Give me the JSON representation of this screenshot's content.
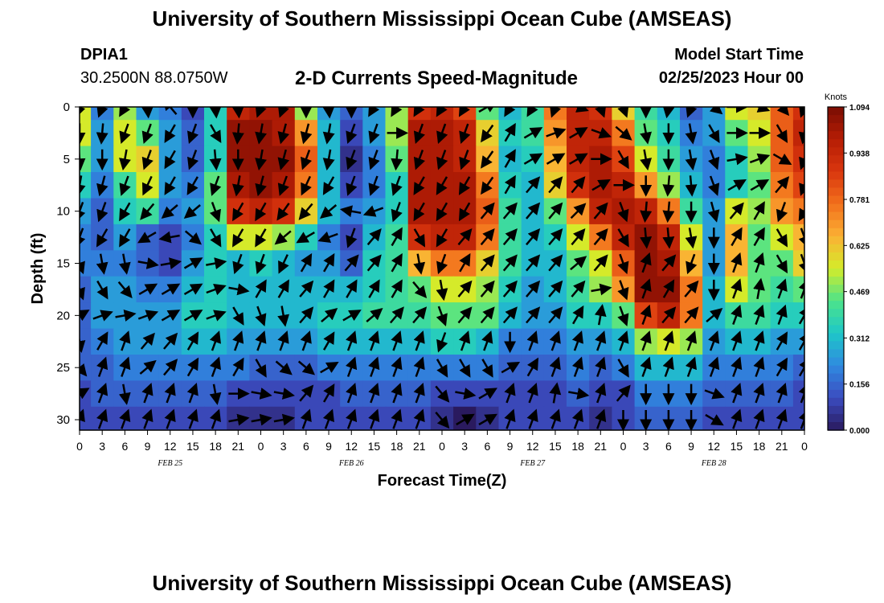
{
  "header": {
    "title": "University of Southern Mississippi Ocean Cube (AMSEAS)",
    "station_id": "DPIA1",
    "coordinates": "30.2500N  88.0750W",
    "subtitle": "2-D Currents Speed-Magnitude",
    "model_label": "Model Start Time",
    "model_start": "02/25/2023 Hour 00"
  },
  "footer": {
    "title": "University of Southern Mississippi Ocean Cube (AMSEAS)"
  },
  "chart_data": {
    "type": "heatmap",
    "title": "2-D Currents Speed-Magnitude",
    "xlabel": "Forecast Time(Z)",
    "ylabel": "Depth (ft)",
    "x_tick_labels": [
      "0",
      "3",
      "6",
      "9",
      "12",
      "15",
      "18",
      "21",
      "0",
      "3",
      "6",
      "9",
      "12",
      "15",
      "18",
      "21",
      "0",
      "3",
      "6",
      "9",
      "12",
      "15",
      "18",
      "21",
      "0",
      "3",
      "6",
      "9",
      "12",
      "15",
      "18",
      "21",
      "0"
    ],
    "x_range_hours": [
      0,
      96
    ],
    "date_labels": [
      {
        "label": "FEB 25",
        "hour": 12
      },
      {
        "label": "FEB 26",
        "hour": 36
      },
      {
        "label": "FEB 27",
        "hour": 60
      },
      {
        "label": "FEB 28",
        "hour": 84
      }
    ],
    "y_ticks": [
      0,
      5,
      10,
      15,
      20,
      25,
      30
    ],
    "ylim": [
      0,
      31
    ],
    "colorbar": {
      "label": "Knots",
      "min": 0.0,
      "max": 1.094,
      "tick_labels": [
        "1.094",
        "0.938",
        "0.781",
        "0.625",
        "0.469",
        "0.312",
        "0.156",
        "0.000"
      ],
      "tick_values": [
        1.094,
        0.938,
        0.781,
        0.625,
        0.469,
        0.312,
        0.156,
        0.0
      ]
    },
    "depths": [
      0,
      2.5,
      5,
      7.5,
      10,
      12.5,
      15,
      17.5,
      20,
      22.5,
      25,
      27.5,
      30
    ],
    "hours": [
      0,
      3,
      6,
      9,
      12,
      15,
      18,
      21,
      24,
      27,
      30,
      33,
      36,
      39,
      42,
      45,
      48,
      51,
      54,
      57,
      60,
      63,
      66,
      69,
      72,
      75,
      78,
      81,
      84,
      87,
      90,
      93,
      96
    ],
    "speed_knots": [
      [
        0.55,
        0.2,
        0.5,
        0.25,
        0.2,
        0.1,
        0.35,
        0.95,
        1.0,
        1.0,
        0.5,
        0.25,
        0.15,
        0.25,
        0.5,
        0.9,
        0.95,
        0.85,
        0.45,
        0.3,
        0.4,
        0.75,
        0.95,
        0.9,
        0.6,
        0.4,
        0.3,
        0.15,
        0.25,
        0.55,
        0.6,
        0.8,
        0.9
      ],
      [
        0.55,
        0.25,
        0.55,
        0.45,
        0.25,
        0.15,
        0.35,
        1.05,
        1.05,
        1.0,
        0.7,
        0.3,
        0.1,
        0.25,
        0.5,
        1.0,
        1.0,
        0.95,
        0.6,
        0.35,
        0.4,
        0.7,
        0.95,
        0.95,
        0.75,
        0.45,
        0.35,
        0.2,
        0.25,
        0.45,
        0.55,
        0.8,
        0.95
      ],
      [
        0.45,
        0.25,
        0.55,
        0.6,
        0.25,
        0.15,
        0.35,
        1.05,
        1.05,
        1.05,
        0.8,
        0.3,
        0.05,
        0.2,
        0.45,
        1.0,
        1.0,
        0.95,
        0.65,
        0.3,
        0.35,
        0.65,
        0.95,
        1.0,
        0.85,
        0.55,
        0.4,
        0.25,
        0.2,
        0.35,
        0.5,
        0.8,
        0.9
      ],
      [
        0.35,
        0.2,
        0.4,
        0.55,
        0.25,
        0.2,
        0.45,
        1.0,
        1.05,
        1.0,
        0.75,
        0.3,
        0.1,
        0.2,
        0.35,
        1.0,
        1.0,
        1.0,
        0.75,
        0.35,
        0.3,
        0.6,
        0.9,
        1.0,
        0.95,
        0.7,
        0.5,
        0.3,
        0.2,
        0.35,
        0.45,
        0.75,
        0.85
      ],
      [
        0.25,
        0.15,
        0.35,
        0.4,
        0.2,
        0.25,
        0.45,
        0.9,
        0.95,
        0.9,
        0.6,
        0.3,
        0.2,
        0.25,
        0.35,
        1.0,
        1.0,
        1.0,
        0.8,
        0.4,
        0.3,
        0.45,
        0.7,
        0.95,
        1.0,
        0.95,
        0.75,
        0.4,
        0.25,
        0.55,
        0.5,
        0.7,
        0.75
      ],
      [
        0.2,
        0.15,
        0.25,
        0.15,
        0.1,
        0.2,
        0.35,
        0.55,
        0.55,
        0.5,
        0.35,
        0.2,
        0.1,
        0.3,
        0.4,
        0.9,
        0.95,
        0.95,
        0.75,
        0.4,
        0.3,
        0.35,
        0.55,
        0.75,
        0.95,
        1.05,
        0.95,
        0.55,
        0.25,
        0.65,
        0.45,
        0.55,
        0.65
      ],
      [
        0.2,
        0.2,
        0.2,
        0.15,
        0.1,
        0.25,
        0.35,
        0.3,
        0.35,
        0.3,
        0.25,
        0.25,
        0.15,
        0.35,
        0.4,
        0.65,
        0.75,
        0.75,
        0.6,
        0.4,
        0.3,
        0.3,
        0.45,
        0.55,
        0.8,
        1.05,
        1.0,
        0.65,
        0.25,
        0.65,
        0.45,
        0.45,
        0.6
      ],
      [
        0.15,
        0.25,
        0.25,
        0.2,
        0.2,
        0.3,
        0.35,
        0.3,
        0.3,
        0.3,
        0.3,
        0.3,
        0.3,
        0.35,
        0.4,
        0.45,
        0.55,
        0.55,
        0.5,
        0.35,
        0.25,
        0.3,
        0.4,
        0.5,
        0.7,
        1.05,
        1.05,
        0.75,
        0.3,
        0.55,
        0.45,
        0.4,
        0.45
      ],
      [
        0.15,
        0.25,
        0.25,
        0.25,
        0.25,
        0.35,
        0.35,
        0.3,
        0.3,
        0.3,
        0.3,
        0.35,
        0.35,
        0.4,
        0.4,
        0.4,
        0.45,
        0.45,
        0.45,
        0.3,
        0.25,
        0.25,
        0.35,
        0.35,
        0.45,
        0.85,
        0.95,
        0.75,
        0.3,
        0.4,
        0.4,
        0.35,
        0.35
      ],
      [
        0.15,
        0.2,
        0.25,
        0.25,
        0.25,
        0.3,
        0.3,
        0.25,
        0.25,
        0.25,
        0.25,
        0.3,
        0.3,
        0.3,
        0.3,
        0.3,
        0.35,
        0.35,
        0.3,
        0.2,
        0.2,
        0.2,
        0.25,
        0.25,
        0.3,
        0.5,
        0.55,
        0.5,
        0.25,
        0.3,
        0.3,
        0.25,
        0.25
      ],
      [
        0.15,
        0.15,
        0.2,
        0.2,
        0.2,
        0.2,
        0.2,
        0.2,
        0.15,
        0.15,
        0.15,
        0.2,
        0.2,
        0.2,
        0.2,
        0.2,
        0.2,
        0.2,
        0.2,
        0.15,
        0.15,
        0.15,
        0.2,
        0.15,
        0.2,
        0.3,
        0.3,
        0.3,
        0.2,
        0.2,
        0.2,
        0.2,
        0.15
      ],
      [
        0.1,
        0.15,
        0.15,
        0.15,
        0.15,
        0.15,
        0.15,
        0.1,
        0.1,
        0.1,
        0.1,
        0.1,
        0.15,
        0.15,
        0.15,
        0.15,
        0.1,
        0.1,
        0.1,
        0.1,
        0.1,
        0.1,
        0.15,
        0.1,
        0.1,
        0.2,
        0.2,
        0.2,
        0.15,
        0.15,
        0.15,
        0.15,
        0.1
      ],
      [
        0.1,
        0.1,
        0.1,
        0.1,
        0.1,
        0.1,
        0.1,
        0.05,
        0.05,
        0.05,
        0.1,
        0.1,
        0.1,
        0.1,
        0.1,
        0.1,
        0.05,
        0.0,
        0.05,
        0.1,
        0.1,
        0.1,
        0.1,
        0.05,
        0.1,
        0.15,
        0.15,
        0.15,
        0.1,
        0.1,
        0.1,
        0.1,
        0.1
      ]
    ],
    "direction_deg": [
      [
        200,
        200,
        210,
        175,
        320,
        180,
        175,
        175,
        200,
        200,
        180,
        175,
        180,
        210,
        210,
        210,
        210,
        210,
        60,
        210,
        210,
        200,
        110,
        160,
        160,
        180,
        190,
        200,
        130,
        90,
        110,
        140,
        200
      ],
      [
        180,
        185,
        200,
        200,
        210,
        200,
        150,
        185,
        190,
        195,
        195,
        190,
        200,
        200,
        90,
        200,
        200,
        200,
        215,
        30,
        60,
        70,
        60,
        110,
        130,
        170,
        180,
        170,
        150,
        90,
        90,
        150,
        190
      ],
      [
        175,
        180,
        190,
        200,
        210,
        200,
        175,
        180,
        190,
        195,
        200,
        190,
        200,
        200,
        185,
        200,
        200,
        200,
        215,
        30,
        60,
        60,
        60,
        90,
        150,
        170,
        180,
        170,
        160,
        80,
        70,
        120,
        200
      ],
      [
        190,
        195,
        200,
        205,
        210,
        210,
        200,
        190,
        195,
        200,
        205,
        210,
        200,
        200,
        200,
        210,
        210,
        210,
        215,
        30,
        40,
        40,
        40,
        60,
        90,
        180,
        185,
        175,
        160,
        60,
        60,
        40,
        200
      ],
      [
        200,
        200,
        210,
        220,
        230,
        230,
        160,
        210,
        210,
        215,
        220,
        230,
        280,
        250,
        200,
        210,
        210,
        210,
        40,
        40,
        40,
        40,
        45,
        40,
        160,
        185,
        185,
        180,
        165,
        40,
        30,
        200,
        210
      ],
      [
        200,
        210,
        210,
        240,
        260,
        130,
        150,
        210,
        210,
        230,
        240,
        250,
        200,
        40,
        30,
        150,
        210,
        40,
        40,
        40,
        40,
        40,
        40,
        40,
        150,
        175,
        175,
        170,
        180,
        30,
        30,
        150,
        160
      ],
      [
        160,
        170,
        170,
        100,
        80,
        60,
        80,
        200,
        200,
        205,
        30,
        30,
        40,
        40,
        30,
        170,
        200,
        30,
        40,
        40,
        40,
        40,
        50,
        40,
        160,
        20,
        40,
        200,
        180,
        20,
        20,
        150,
        160
      ],
      [
        160,
        150,
        140,
        60,
        60,
        60,
        70,
        100,
        30,
        30,
        40,
        30,
        30,
        30,
        30,
        140,
        170,
        40,
        40,
        40,
        40,
        40,
        40,
        80,
        160,
        20,
        30,
        40,
        180,
        20,
        10,
        20,
        20
      ],
      [
        60,
        70,
        80,
        70,
        60,
        60,
        70,
        150,
        160,
        170,
        40,
        50,
        60,
        50,
        40,
        40,
        160,
        40,
        40,
        40,
        40,
        40,
        30,
        10,
        160,
        20,
        40,
        40,
        50,
        20,
        20,
        20,
        30
      ],
      [
        170,
        30,
        20,
        40,
        40,
        30,
        20,
        20,
        20,
        20,
        20,
        30,
        20,
        20,
        20,
        20,
        200,
        20,
        20,
        180,
        20,
        20,
        20,
        20,
        20,
        20,
        20,
        20,
        20,
        20,
        20,
        30,
        30
      ],
      [
        140,
        20,
        20,
        50,
        40,
        30,
        20,
        30,
        150,
        130,
        130,
        60,
        20,
        20,
        20,
        20,
        150,
        150,
        150,
        60,
        30,
        20,
        20,
        20,
        150,
        20,
        20,
        20,
        20,
        20,
        20,
        30,
        30
      ],
      [
        60,
        20,
        170,
        20,
        20,
        20,
        170,
        90,
        100,
        100,
        40,
        30,
        20,
        20,
        20,
        20,
        140,
        100,
        60,
        20,
        20,
        10,
        100,
        20,
        40,
        180,
        180,
        180,
        110,
        20,
        20,
        20,
        20
      ],
      [
        20,
        20,
        20,
        20,
        20,
        20,
        20,
        80,
        80,
        80,
        20,
        20,
        20,
        20,
        20,
        20,
        140,
        60,
        60,
        20,
        20,
        20,
        20,
        20,
        180,
        180,
        180,
        180,
        120,
        20,
        20,
        20,
        20
      ]
    ]
  }
}
